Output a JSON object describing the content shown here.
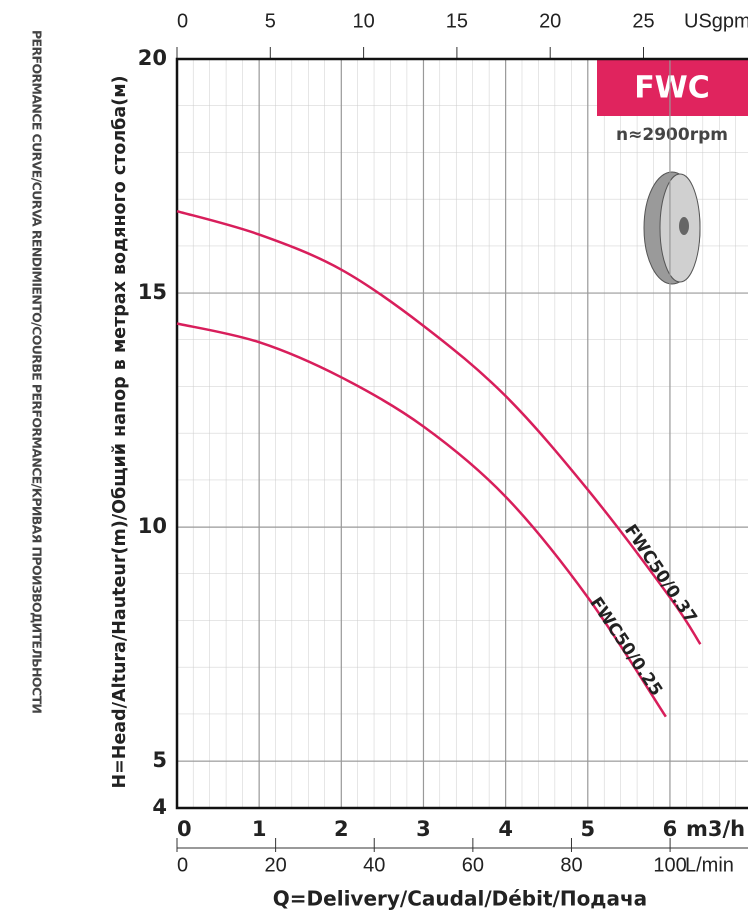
{
  "side_text": "PERFORMANCE CURVE/CURVA RENDIMIENTO/COURBE PERFORMANCE/КРИВАЯ ПРОИЗВОДИТЕЛЬНОСТИ",
  "chart_data": {
    "type": "line",
    "model": "FWC",
    "speed": "n≈2900rpm",
    "y_label": "H=Head/Altura/Hauteur(m)/Общий напор в метрах водяного столба(м)",
    "x_label": "Q=Delivery/Caudal/Débit/Подача",
    "x_unit": "m3/h",
    "xlim": [
      0,
      6.95
    ],
    "xticks": [
      0,
      1,
      2,
      3,
      4,
      5,
      6
    ],
    "ylim": [
      4,
      20
    ],
    "yticks": [
      4,
      5,
      10,
      15,
      20
    ],
    "top_axis": {
      "unit": "USgpm",
      "xlim": [
        0,
        30.6
      ],
      "xticks": [
        0,
        5,
        10,
        15,
        20,
        25
      ]
    },
    "bottom_axis": {
      "unit": "L/min",
      "xlim": [
        0,
        115.8
      ],
      "xticks": [
        0,
        20,
        40,
        60,
        80,
        100
      ]
    },
    "grid": true,
    "series": [
      {
        "name": "FWC50/0.37",
        "color": "#d81e5b",
        "x": [
          0,
          1,
          2,
          3,
          4,
          5,
          6,
          6.37
        ],
        "values": [
          16.75,
          16.25,
          15.5,
          14.3,
          12.8,
          10.8,
          8.5,
          7.5
        ]
      },
      {
        "name": "FWC50/0.25",
        "color": "#d81e5b",
        "x": [
          0,
          1,
          2,
          3,
          4,
          5,
          5.95
        ],
        "values": [
          14.35,
          13.95,
          13.2,
          12.15,
          10.65,
          8.5,
          5.95
        ]
      }
    ]
  }
}
